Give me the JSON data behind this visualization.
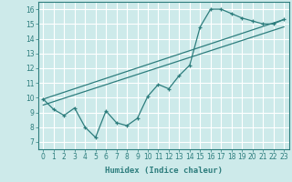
{
  "xlabel": "Humidex (Indice chaleur)",
  "bg_color": "#cdeaea",
  "grid_color": "#ffffff",
  "line_color": "#2d7d7d",
  "xlim": [
    -0.5,
    23.5
  ],
  "ylim": [
    6.5,
    16.5
  ],
  "xticks": [
    0,
    1,
    2,
    3,
    4,
    5,
    6,
    7,
    8,
    9,
    10,
    11,
    12,
    13,
    14,
    15,
    16,
    17,
    18,
    19,
    20,
    21,
    22,
    23
  ],
  "yticks": [
    7,
    8,
    9,
    10,
    11,
    12,
    13,
    14,
    15,
    16
  ],
  "line1_x": [
    0,
    1,
    2,
    3,
    4,
    5,
    6,
    7,
    8,
    9,
    10,
    11,
    12,
    13,
    14,
    15,
    16,
    17,
    18,
    19,
    20,
    21,
    22,
    23
  ],
  "line1_y": [
    9.9,
    9.2,
    8.8,
    9.3,
    8.0,
    7.3,
    9.1,
    8.3,
    8.1,
    8.6,
    10.1,
    10.9,
    10.6,
    11.5,
    12.2,
    14.8,
    16.0,
    16.0,
    15.7,
    15.4,
    15.2,
    15.0,
    15.0,
    15.3
  ],
  "line2_x": [
    0,
    23
  ],
  "line2_y": [
    9.9,
    15.3
  ],
  "line3_x": [
    0,
    23
  ],
  "line3_y": [
    9.9,
    15.3
  ]
}
